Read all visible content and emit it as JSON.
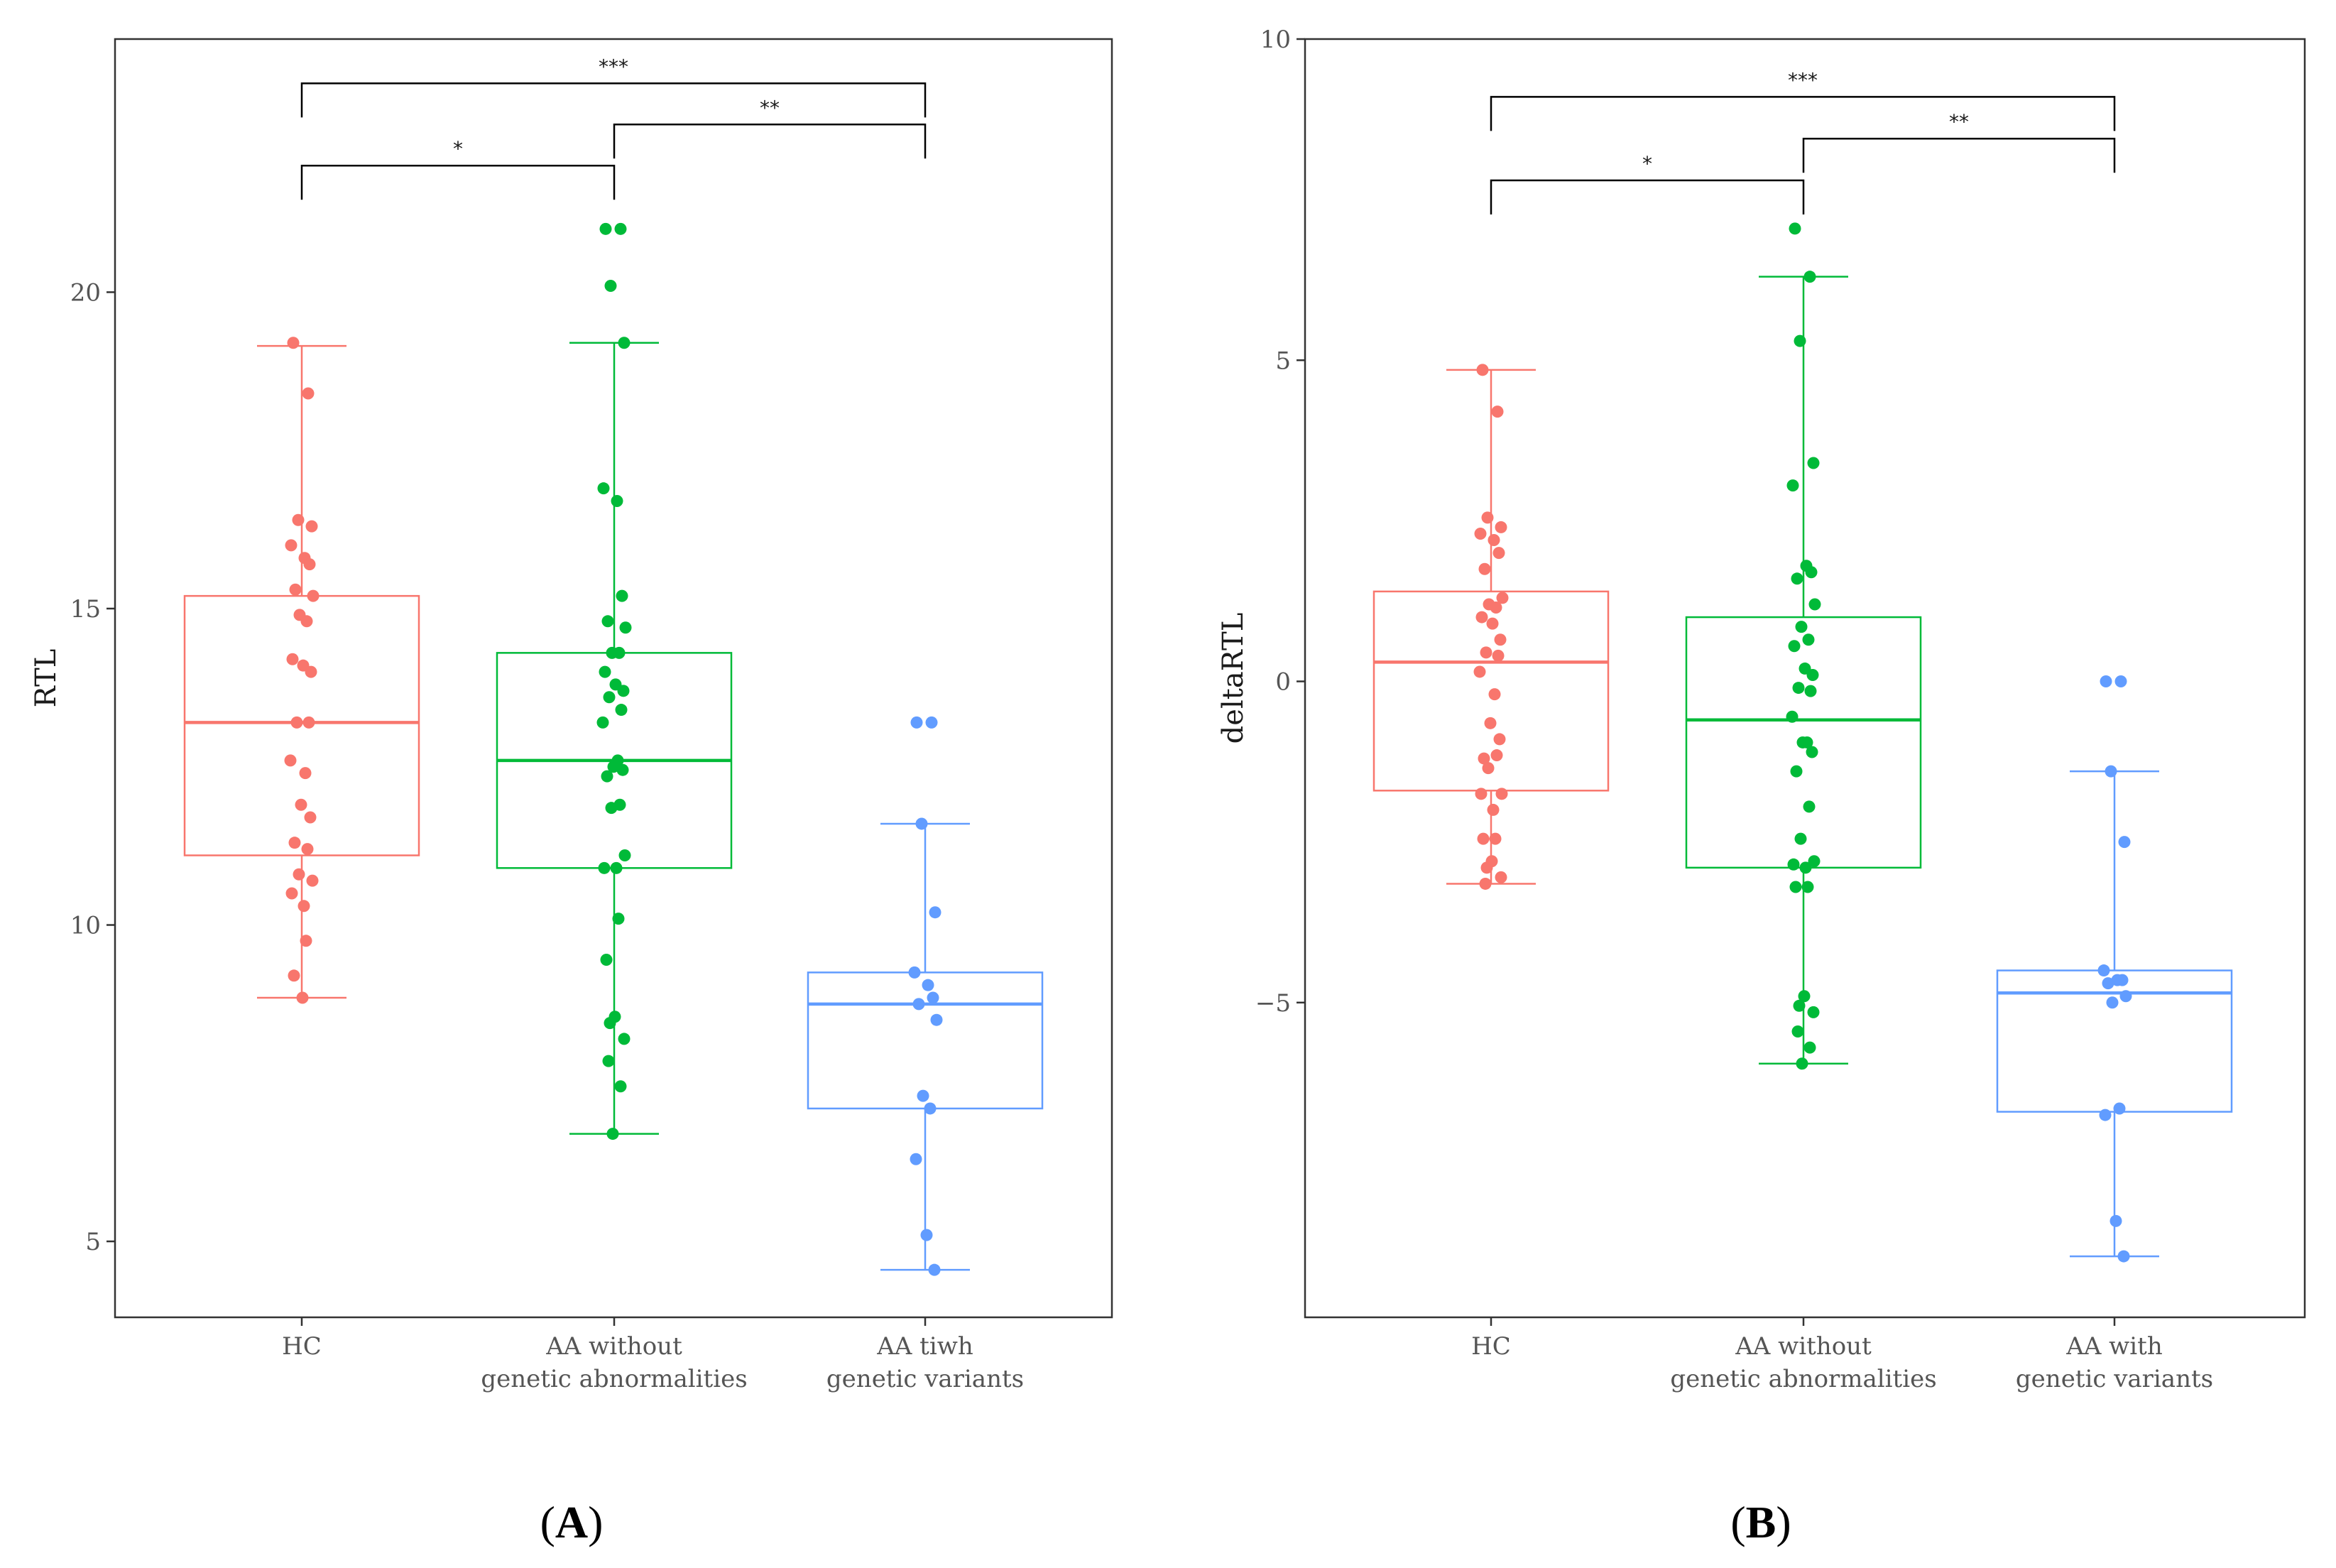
{
  "colors": {
    "hc": "#F8766D",
    "aa_without": "#00BA38",
    "aa_with": "#619CFF",
    "frame": "#333333",
    "bracket": "#000000"
  },
  "chart_data": [
    {
      "type": "box",
      "panel_label": "(A)",
      "panel_label_parts": {
        "open": "(",
        "letter": "A",
        "close": ")"
      },
      "ylabel": "RTL",
      "xlabel": "",
      "ylim": [
        3.8,
        24.0
      ],
      "yticks": [
        5,
        10,
        15,
        20
      ],
      "ytick_labels": [
        "5",
        "10",
        "15",
        "20"
      ],
      "categories": [
        {
          "line1": "HC",
          "line2": ""
        },
        {
          "line1": "AA without",
          "line2": "genetic abnormalities"
        },
        {
          "line1": "AA tiwh",
          "line2": "genetic variants"
        }
      ],
      "series": [
        {
          "name": "HC",
          "color_key": "hc",
          "q1": 11.1,
          "median": 13.2,
          "q3": 15.2,
          "whisker_low": 8.85,
          "whisker_high": 19.15,
          "points": [
            19.2,
            18.4,
            16.4,
            16.3,
            16.0,
            15.8,
            15.7,
            15.3,
            15.2,
            14.9,
            14.8,
            14.2,
            14.1,
            14.0,
            13.2,
            13.2,
            12.6,
            12.4,
            11.9,
            11.7,
            11.3,
            11.2,
            10.8,
            10.7,
            10.5,
            10.3,
            9.75,
            9.2,
            8.85
          ]
        },
        {
          "name": "AA without genetic abnormalities",
          "color_key": "aa_without",
          "q1": 10.9,
          "median": 12.6,
          "q3": 14.3,
          "whisker_low": 6.7,
          "whisker_high": 19.2,
          "points": [
            21.0,
            21.0,
            20.1,
            19.2,
            16.9,
            16.7,
            15.2,
            14.8,
            14.7,
            14.3,
            14.3,
            14.0,
            13.8,
            13.7,
            13.6,
            13.4,
            13.2,
            12.6,
            12.5,
            12.45,
            12.35,
            11.9,
            11.85,
            11.1,
            10.9,
            10.9,
            10.1,
            9.45,
            8.55,
            8.45,
            8.2,
            7.85,
            7.45,
            6.7
          ]
        },
        {
          "name": "AA tiwh genetic variants",
          "color_key": "aa_with",
          "q1": 7.1,
          "median": 8.75,
          "q3": 9.25,
          "whisker_low": 4.55,
          "whisker_high": 11.6,
          "points": [
            13.2,
            13.2,
            11.6,
            10.2,
            9.25,
            9.05,
            8.85,
            8.75,
            8.5,
            7.3,
            7.1,
            6.3,
            5.1,
            4.55
          ]
        }
      ],
      "significance": [
        {
          "from": 0,
          "to": 1,
          "label": "*",
          "y": 22.0
        },
        {
          "from": 1,
          "to": 2,
          "label": "**",
          "y": 22.65
        },
        {
          "from": 0,
          "to": 2,
          "label": "***",
          "y": 23.3
        }
      ]
    },
    {
      "type": "box",
      "panel_label": "(B)",
      "panel_label_parts": {
        "open": "(",
        "letter": "B",
        "close": ")"
      },
      "ylabel": "deltaRTL",
      "xlabel": "",
      "ylim": [
        -9.9,
        10.0
      ],
      "yticks": [
        -5,
        0,
        5,
        10
      ],
      "ytick_labels": [
        "−5",
        "0",
        "5",
        "10"
      ],
      "categories": [
        {
          "line1": "HC",
          "line2": ""
        },
        {
          "line1": "AA without",
          "line2": "genetic abnormalities"
        },
        {
          "line1": "AA with",
          "line2": "genetic variants"
        }
      ],
      "series": [
        {
          "name": "HC",
          "color_key": "hc",
          "q1": -1.7,
          "median": 0.3,
          "q3": 1.4,
          "whisker_low": -3.15,
          "whisker_high": 4.85,
          "points": [
            4.85,
            4.2,
            2.55,
            2.4,
            2.3,
            2.2,
            2.0,
            1.75,
            1.3,
            1.2,
            1.15,
            1.0,
            0.9,
            0.65,
            0.45,
            0.4,
            0.15,
            -0.2,
            -0.65,
            -0.9,
            -1.2,
            -1.15,
            -1.35,
            -1.75,
            -1.75,
            -2.0,
            -2.45,
            -2.45,
            -2.8,
            -2.9,
            -3.05,
            -3.15
          ]
        },
        {
          "name": "AA without genetic abnormalities",
          "color_key": "aa_without",
          "q1": -2.9,
          "median": -0.6,
          "q3": 1.0,
          "whisker_low": -5.95,
          "whisker_high": 6.3,
          "points": [
            7.05,
            6.3,
            5.3,
            3.4,
            3.05,
            1.8,
            1.7,
            1.6,
            1.2,
            0.85,
            0.65,
            0.55,
            0.2,
            0.1,
            -0.1,
            -0.15,
            -0.55,
            -0.95,
            -0.95,
            -1.1,
            -1.4,
            -1.95,
            -2.45,
            -2.8,
            -2.85,
            -2.9,
            -3.2,
            -3.2,
            -4.9,
            -5.05,
            -5.15,
            -5.45,
            -5.7,
            -5.95
          ]
        },
        {
          "name": "AA with genetic variants",
          "color_key": "aa_with",
          "q1": -6.7,
          "median": -4.85,
          "q3": -4.5,
          "whisker_low": -8.95,
          "whisker_high": -1.4,
          "points": [
            0.0,
            0.0,
            -1.4,
            -2.5,
            -4.5,
            -4.65,
            -4.65,
            -4.7,
            -4.9,
            -5.0,
            -6.65,
            -6.75,
            -8.4,
            -8.95
          ]
        }
      ],
      "significance": [
        {
          "from": 0,
          "to": 1,
          "label": "*",
          "y": 7.8
        },
        {
          "from": 1,
          "to": 2,
          "label": "**",
          "y": 8.45
        },
        {
          "from": 0,
          "to": 2,
          "label": "***",
          "y": 9.1
        }
      ]
    }
  ]
}
